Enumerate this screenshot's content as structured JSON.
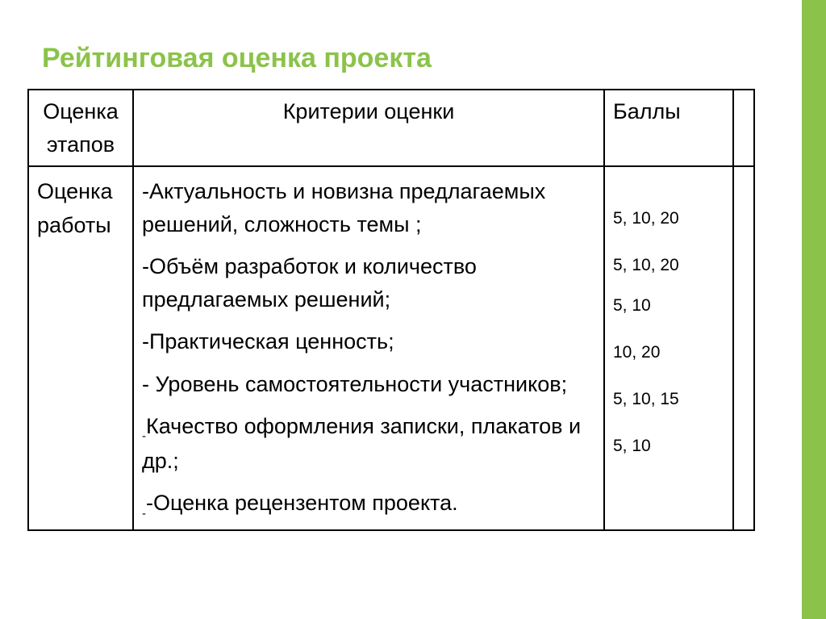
{
  "accent_color": "#8bc34a",
  "sidebar_color": "#8bc34a",
  "title": "Рейтинговая оценка проекта",
  "table": {
    "headers": {
      "col1": "Оценка этапов",
      "col2": "Критерии оценки",
      "col3": "Баллы"
    },
    "row": {
      "stage": "Оценка работы",
      "criteria": [
        "-Актуальность и новизна предлагаемых решений, сложность темы ;",
        "-Объём разработок и количество предлагаемых решений;",
        "-Практическая ценность;",
        "- Уровень самостоятельности участников;",
        "Качество оформления записки, плакатов и др.;",
        "-Оценка рецензентом проекта."
      ],
      "scores": [
        "5, 10, 20",
        "5, 10, 20",
        "5, 10",
        "10, 20",
        "5, 10, 15",
        "5, 10"
      ]
    }
  }
}
